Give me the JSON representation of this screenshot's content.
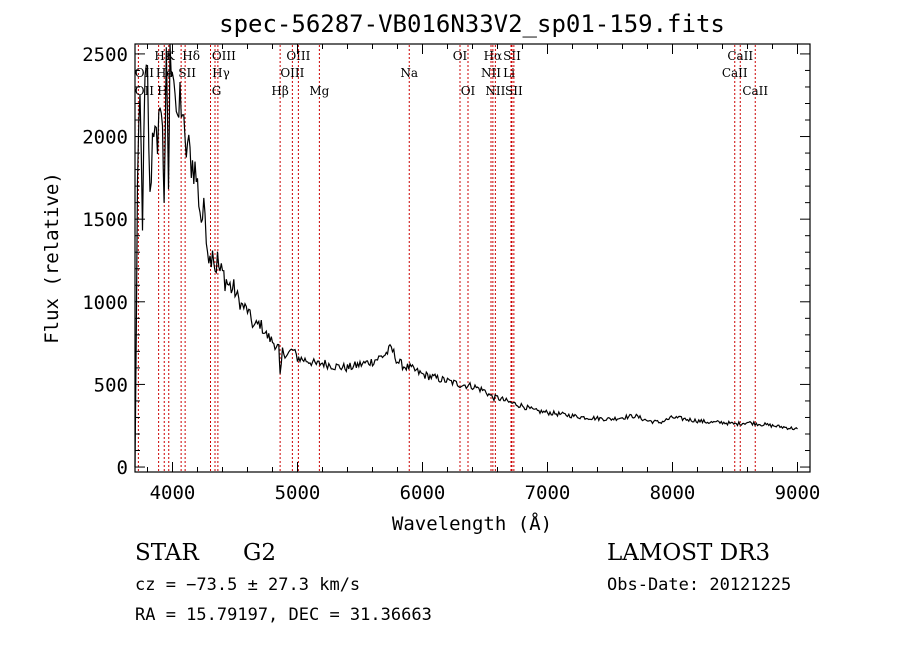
{
  "chart_data": {
    "type": "line",
    "title": "spec-56287-VB016N33V2_sp01-159.fits",
    "xlabel": "Wavelength (Å)",
    "ylabel": "Flux (relative)",
    "xlim": [
      3700,
      9100
    ],
    "ylim": [
      -30,
      2560
    ],
    "xticks": [
      4000,
      5000,
      6000,
      7000,
      8000,
      9000
    ],
    "xtick_labels": [
      "4000",
      "5000",
      "6000",
      "7000",
      "8000",
      "9000"
    ],
    "yticks": [
      0,
      500,
      1000,
      1500,
      2000,
      2500
    ],
    "ytick_labels": [
      "0",
      "500",
      "1000",
      "1500",
      "2000",
      "2500"
    ],
    "spectrum": {
      "name": "flux",
      "x": [
        3700,
        3720,
        3740,
        3760,
        3780,
        3800,
        3820,
        3840,
        3860,
        3880,
        3900,
        3920,
        3933,
        3950,
        3968,
        3980,
        4000,
        4020,
        4040,
        4060,
        4080,
        4101,
        4120,
        4150,
        4180,
        4200,
        4230,
        4260,
        4280,
        4300,
        4320,
        4340,
        4360,
        4380,
        4400,
        4450,
        4500,
        4550,
        4600,
        4650,
        4700,
        4750,
        4800,
        4850,
        4861,
        4880,
        4920,
        4960,
        5000,
        5050,
        5100,
        5150,
        5200,
        5300,
        5400,
        5500,
        5600,
        5700,
        5750,
        5800,
        5850,
        5900,
        6000,
        6100,
        6200,
        6300,
        6400,
        6500,
        6563,
        6600,
        6700,
        6800,
        6900,
        7000,
        7100,
        7200,
        7300,
        7400,
        7500,
        7600,
        7700,
        7800,
        7900,
        8000,
        8100,
        8200,
        8300,
        8400,
        8500,
        8600,
        8700,
        8800,
        8900,
        9000
      ],
      "y": [
        0,
        1700,
        2200,
        1500,
        2300,
        2350,
        1600,
        2000,
        2150,
        1800,
        2300,
        2000,
        1650,
        2400,
        1700,
        2450,
        2500,
        2300,
        2000,
        2250,
        2150,
        1900,
        1950,
        1850,
        1800,
        1700,
        1500,
        1550,
        1350,
        1250,
        1350,
        1200,
        1250,
        1180,
        1170,
        1100,
        1060,
        980,
        950,
        850,
        870,
        800,
        760,
        720,
        540,
        700,
        680,
        710,
        660,
        650,
        640,
        620,
        630,
        610,
        600,
        620,
        640,
        680,
        720,
        640,
        610,
        600,
        560,
        540,
        520,
        500,
        490,
        460,
        420,
        420,
        390,
        370,
        340,
        330,
        320,
        310,
        300,
        295,
        290,
        300,
        310,
        280,
        270,
        300,
        290,
        280,
        270,
        270,
        260,
        270,
        260,
        250,
        240,
        230
      ]
    },
    "lines": [
      {
        "label": "Hε",
        "wl": 3970,
        "row": 0,
        "dx": -6
      },
      {
        "label": "K",
        "wl": 3934,
        "row": 0,
        "dx": 6
      },
      {
        "label": "Hδ",
        "wl": 4101,
        "row": 0,
        "dx": 6
      },
      {
        "label": "OII",
        "wl": 3727,
        "row": 1,
        "dx": 6
      },
      {
        "label": "He",
        "wl": 3889,
        "row": 1,
        "dx": 6
      },
      {
        "label": "SII",
        "wl": 4069,
        "row": 1,
        "dx": 6
      },
      {
        "label": "OII",
        "wl": 3727,
        "row": 2,
        "dx": 6
      },
      {
        "label": "H",
        "wl": 3968,
        "row": 2,
        "dx": -6
      },
      {
        "label": "OIII",
        "wl": 4363,
        "row": 0,
        "dx": 6
      },
      {
        "label": "Hγ",
        "wl": 4340,
        "row": 1,
        "dx": 6
      },
      {
        "label": "G",
        "wl": 4304,
        "row": 2,
        "dx": 6
      },
      {
        "label": "Hβ",
        "wl": 4861,
        "row": 2,
        "dx": 0
      },
      {
        "label": "OIII",
        "wl": 4959,
        "row": 0,
        "dx": 6
      },
      {
        "label": "OIII",
        "wl": 5007,
        "row": 1,
        "dx": -6
      },
      {
        "label": "Mg",
        "wl": 5175,
        "row": 2,
        "dx": 0
      },
      {
        "label": "Na",
        "wl": 5894,
        "row": 1,
        "dx": 0
      },
      {
        "label": "OI",
        "wl": 6300,
        "row": 0,
        "dx": 0
      },
      {
        "label": "OI",
        "wl": 6364,
        "row": 2,
        "dx": 0
      },
      {
        "label": "Hα",
        "wl": 6563,
        "row": 0,
        "dx": 0
      },
      {
        "label": "SII",
        "wl": 6716,
        "row": 0,
        "dx": 0
      },
      {
        "label": "NII",
        "wl": 6548,
        "row": 1,
        "dx": 0
      },
      {
        "label": "Li",
        "wl": 6708,
        "row": 1,
        "dx": -2
      },
      {
        "label": "NII",
        "wl": 6583,
        "row": 2,
        "dx": 0
      },
      {
        "label": "SII",
        "wl": 6731,
        "row": 2,
        "dx": 0
      },
      {
        "label": "CaII",
        "wl": 8542,
        "row": 0,
        "dx": 0
      },
      {
        "label": "CaII",
        "wl": 8498,
        "row": 1,
        "dx": 0
      },
      {
        "label": "CaII",
        "wl": 8662,
        "row": 2,
        "dx": 0
      }
    ]
  },
  "info": {
    "class": "STAR",
    "subclass": "G2",
    "survey": "LAMOST DR3",
    "cz": "cz = −73.5 ± 27.3 km/s",
    "obs_date": "Obs-Date: 20121225",
    "radec": "RA =  15.79197, DEC =  31.36663"
  },
  "colors": {
    "spectrum": "#000000",
    "line_marker": "#cc0000"
  }
}
